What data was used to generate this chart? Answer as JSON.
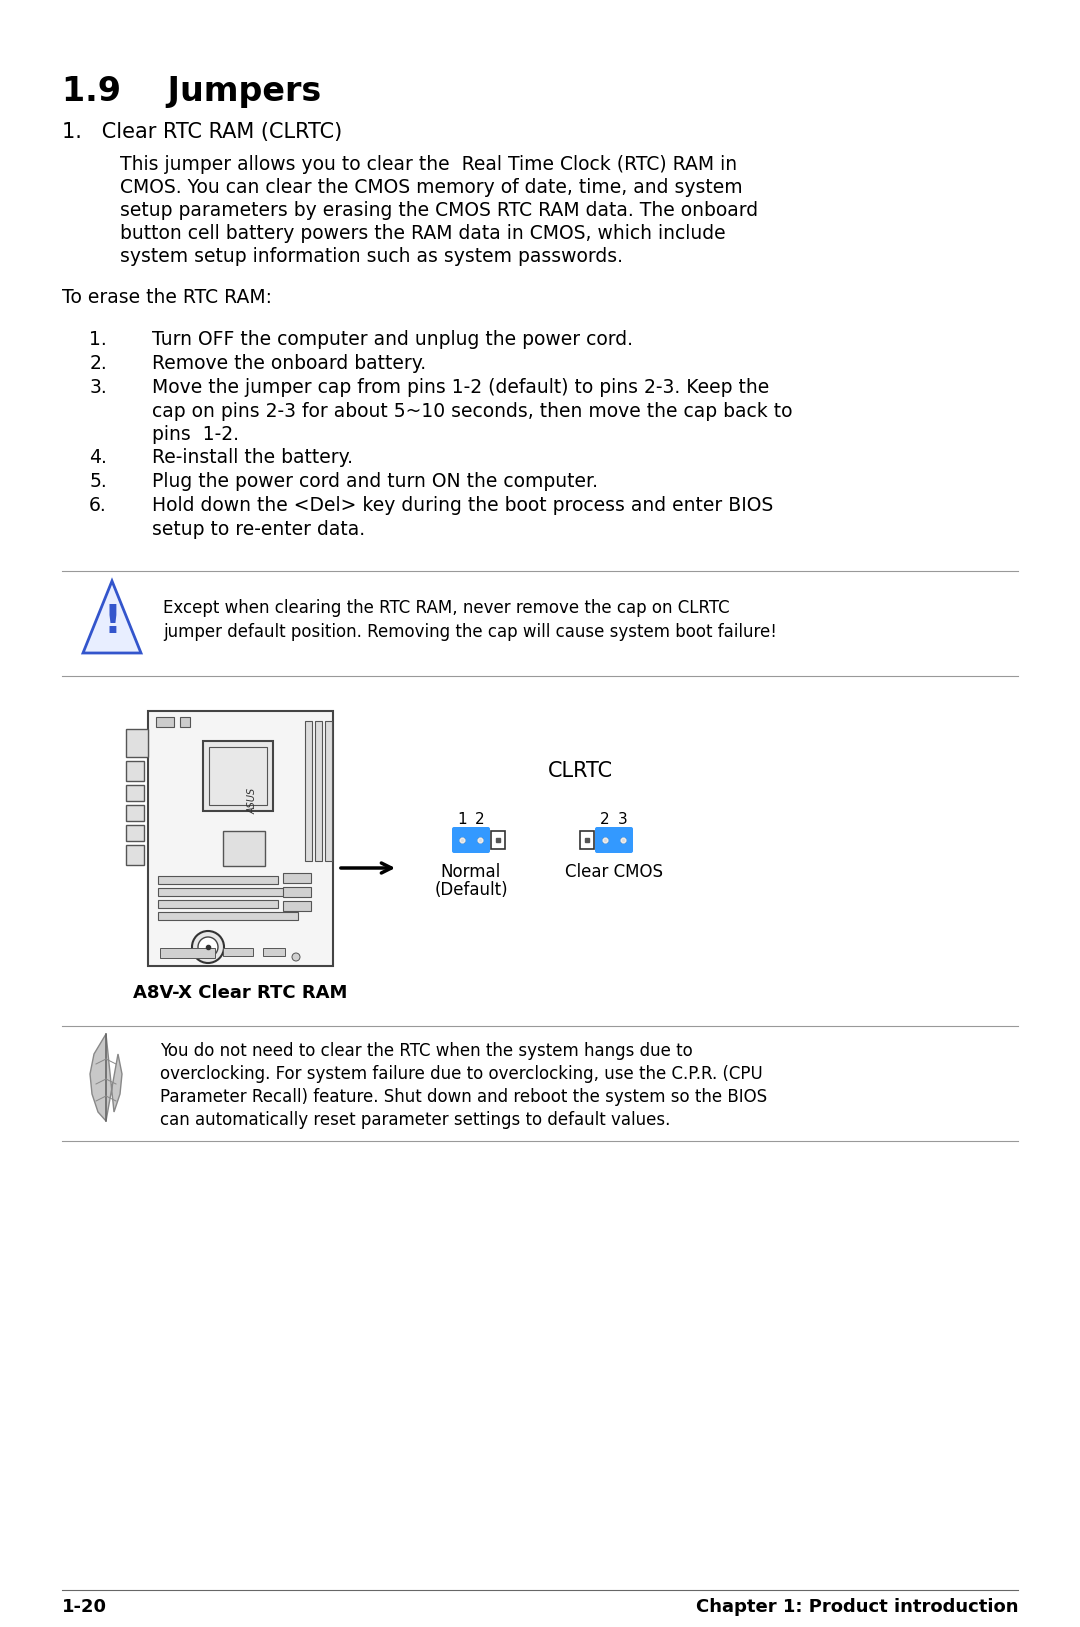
{
  "title": "1.9    Jumpers",
  "bg_color": "#ffffff",
  "text_color": "#000000",
  "section1_heading": "1.   Clear RTC RAM (CLRTC)",
  "section1_body_lines": [
    "This jumper allows you to clear the  Real Time Clock (RTC) RAM in",
    "CMOS. You can clear the CMOS memory of date, time, and system",
    "setup parameters by erasing the CMOS RTC RAM data. The onboard",
    "button cell battery powers the RAM data in CMOS, which include",
    "system setup information such as system passwords."
  ],
  "to_erase": "To erase the RTC RAM:",
  "step_nums": [
    "1.",
    "2.",
    "3.",
    "4.",
    "5.",
    "6."
  ],
  "step_lines": [
    [
      "Turn OFF the computer and unplug the power cord."
    ],
    [
      "Remove the onboard battery."
    ],
    [
      "Move the jumper cap from pins 1-2 (default) to pins 2-3. Keep the",
      "cap on pins 2-3 for about 5~10 seconds, then move the cap back to",
      "pins  1-2."
    ],
    [
      "Re-install the battery."
    ],
    [
      "Plug the power cord and turn ON the computer."
    ],
    [
      "Hold down the <Del> key during the boot process and enter BIOS",
      "setup to re-enter data."
    ]
  ],
  "warning_line1": "Except when clearing the RTC RAM, never remove the cap on CLRTC",
  "warning_line2": "jumper default position. Removing the cap will cause system boot failure!",
  "clrtc_label": "CLRTC",
  "pin1_label": "1",
  "pin2_label": "2",
  "pin2b_label": "2",
  "pin3_label": "3",
  "normal_label_line1": "Normal",
  "normal_label_line2": "(Default)",
  "clear_label": "Clear CMOS",
  "board_label": "A8V-X Clear RTC RAM",
  "note_line1": "You do not need to clear the RTC when the system hangs due to",
  "note_line2": "overclocking. For system failure due to overclocking, use the C.P.R. (CPU",
  "note_line3": "Parameter Recall) feature. Shut down and reboot the system so the BIOS",
  "note_line4": "can automatically reset parameter settings to default values.",
  "footer_left": "1-20",
  "footer_right": "Chapter 1: Product introduction",
  "blue_cap": "#3399ff",
  "pin_dark": "#222222",
  "pin_outline": "#555555",
  "warning_blue": "#3355cc",
  "warn_tri_fill": "#e8eeff",
  "separator_color": "#999999",
  "board_edge": "#444444",
  "board_fill": "#f5f5f5"
}
